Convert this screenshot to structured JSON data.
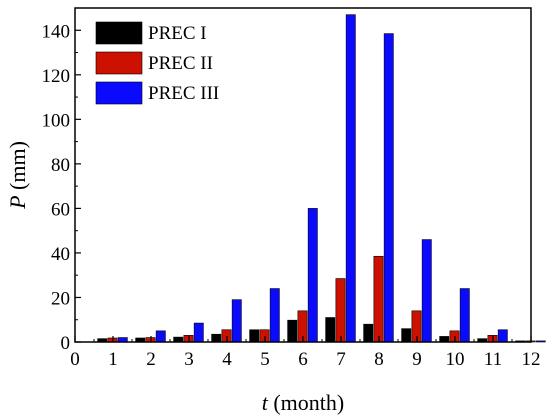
{
  "chart_data": {
    "type": "bar",
    "x": [
      1,
      2,
      3,
      4,
      5,
      6,
      7,
      8,
      9,
      10,
      11,
      12
    ],
    "series": [
      {
        "name": "PREC I",
        "color": "#000000",
        "values": [
          1.5,
          1.8,
          2.2,
          3.5,
          5.5,
          9.8,
          11.0,
          8.0,
          6.0,
          2.5,
          1.5,
          0.5
        ]
      },
      {
        "name": "PREC II",
        "color": "#cc1100",
        "values": [
          1.8,
          2.0,
          3.0,
          5.5,
          5.5,
          14.0,
          28.5,
          38.5,
          14.0,
          5.0,
          3.0,
          0.5
        ]
      },
      {
        "name": "PREC III",
        "color": "#0a0aff",
        "values": [
          2.0,
          5.0,
          8.5,
          19.0,
          24.0,
          60.0,
          147.0,
          138.5,
          46.0,
          24.0,
          5.5,
          0.5
        ]
      }
    ],
    "xlabel_var": "t",
    "xlabel_unit": " (month)",
    "ylabel_var": "P",
    "ylabel_unit": " (mm)",
    "xlim": [
      0,
      12
    ],
    "ylim": [
      0,
      150
    ],
    "xticks": [
      0,
      1,
      2,
      3,
      4,
      5,
      6,
      7,
      8,
      9,
      10,
      11,
      12
    ],
    "yticks": [
      0,
      20,
      40,
      60,
      80,
      100,
      120,
      140
    ],
    "grid": false,
    "legend_position": "top-left"
  }
}
